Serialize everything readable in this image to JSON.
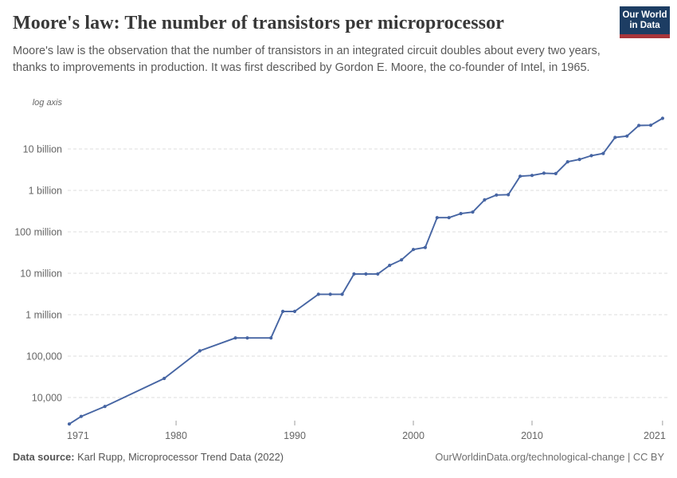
{
  "header": {
    "title": "Moore's law: The number of transistors per microprocessor",
    "subtitle": "Moore's law is the observation that the number of transistors in an integrated circuit doubles about every two years, thanks to improvements in production. It was first described by Gordon E. Moore, the co-founder of Intel, in 1965.",
    "logo": {
      "line1": "Our World",
      "line2": "in Data"
    }
  },
  "footer": {
    "data_source_label": "Data source:",
    "data_source_text": " Karl Rupp, Microprocessor Trend Data (2022)",
    "credit": "OurWorldinData.org/technological-change | CC BY"
  },
  "colors": {
    "line": "#4665a3",
    "grid": "#dcdcdc",
    "tick": "#9e9e9e",
    "axis_text": "#666666",
    "logo_bg": "#1d3d63",
    "logo_red": "#a8353a"
  },
  "chart_data": {
    "type": "line",
    "title": "Moore's law: The number of transistors per microprocessor",
    "xlabel": "",
    "ylabel": "Transistors per microprocessor",
    "yscale": "log",
    "log_axis_label": "log axis",
    "grid": "dashed horizontal gridlines",
    "legend": "none",
    "xlim": [
      1971,
      2021
    ],
    "ylim": [
      2000,
      100000000000
    ],
    "x_ticks": [
      1971,
      1980,
      1990,
      2000,
      2010,
      2021
    ],
    "y_ticks": [
      {
        "value": 10000,
        "label": "10,000"
      },
      {
        "value": 100000,
        "label": "100,000"
      },
      {
        "value": 1000000,
        "label": "1 million"
      },
      {
        "value": 10000000,
        "label": "10 million"
      },
      {
        "value": 100000000,
        "label": "100 million"
      },
      {
        "value": 1000000000,
        "label": "1 billion"
      },
      {
        "value": 10000000000,
        "label": "10 billion"
      }
    ],
    "series": [
      {
        "name": "Transistors per microprocessor",
        "points": [
          [
            1971,
            2300
          ],
          [
            1972,
            3500
          ],
          [
            1974,
            6100
          ],
          [
            1979,
            29000
          ],
          [
            1982,
            134000
          ],
          [
            1985,
            274000
          ],
          [
            1986,
            274000
          ],
          [
            1988,
            274000
          ],
          [
            1989,
            1200000
          ],
          [
            1990,
            1200000
          ],
          [
            1992,
            3100000
          ],
          [
            1993,
            3100000
          ],
          [
            1994,
            3100000
          ],
          [
            1995,
            9600000
          ],
          [
            1996,
            9600000
          ],
          [
            1997,
            9600000
          ],
          [
            1998,
            15500000
          ],
          [
            1999,
            21000000
          ],
          [
            2000,
            37500000
          ],
          [
            2001,
            42000000
          ],
          [
            2002,
            220000000
          ],
          [
            2003,
            220000000
          ],
          [
            2004,
            276000000
          ],
          [
            2005,
            300000000
          ],
          [
            2006,
            590000000
          ],
          [
            2007,
            774000000
          ],
          [
            2008,
            789000000
          ],
          [
            2009,
            2200000000
          ],
          [
            2010,
            2300000000
          ],
          [
            2011,
            2600000000
          ],
          [
            2012,
            2550000000
          ],
          [
            2013,
            4900000000
          ],
          [
            2014,
            5600000000
          ],
          [
            2015,
            6900000000
          ],
          [
            2016,
            7800000000
          ],
          [
            2017,
            19000000000
          ],
          [
            2018,
            20500000000
          ],
          [
            2019,
            37000000000
          ],
          [
            2020,
            37500000000
          ],
          [
            2021,
            55000000000
          ]
        ]
      }
    ]
  }
}
